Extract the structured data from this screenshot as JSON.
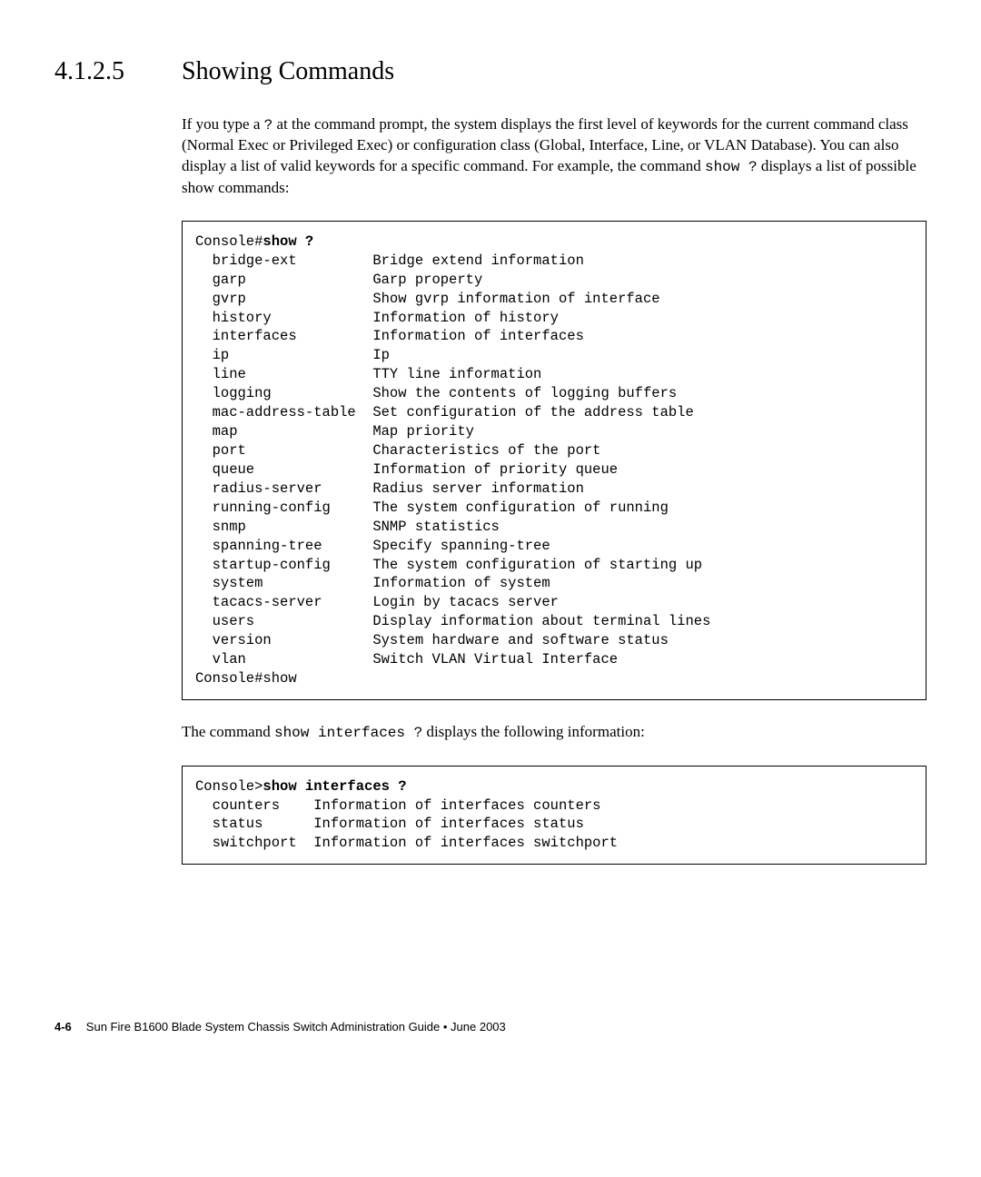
{
  "heading": {
    "number": "4.1.2.5",
    "title": "Showing Commands"
  },
  "para1_part1": "If you type a ",
  "para1_mono1": "?",
  "para1_part2": " at the command prompt, the system displays the first level of keywords for the current command class (Normal Exec or Privileged Exec) or configuration class (Global, Interface, Line, or VLAN Database). You can also display a list of valid keywords for a specific command. For example, the command ",
  "para1_mono2": "show ?",
  "para1_part3": " displays a list of possible show commands:",
  "code1": {
    "prompt": "Console#",
    "cmd": "show ?",
    "rows": [
      {
        "k": "bridge-ext",
        "d": "Bridge extend information"
      },
      {
        "k": "garp",
        "d": "Garp property"
      },
      {
        "k": "gvrp",
        "d": "Show gvrp information of interface"
      },
      {
        "k": "history",
        "d": "Information of history"
      },
      {
        "k": "interfaces",
        "d": "Information of interfaces"
      },
      {
        "k": "ip",
        "d": "Ip"
      },
      {
        "k": "line",
        "d": "TTY line information"
      },
      {
        "k": "logging",
        "d": "Show the contents of logging buffers"
      },
      {
        "k": "mac-address-table",
        "d": "Set configuration of the address table"
      },
      {
        "k": "map",
        "d": "Map priority"
      },
      {
        "k": "port",
        "d": "Characteristics of the port"
      },
      {
        "k": "queue",
        "d": "Information of priority queue"
      },
      {
        "k": "radius-server",
        "d": "Radius server information"
      },
      {
        "k": "running-config",
        "d": "The system configuration of running"
      },
      {
        "k": "snmp",
        "d": "SNMP statistics"
      },
      {
        "k": "spanning-tree",
        "d": "Specify spanning-tree"
      },
      {
        "k": "startup-config",
        "d": "The system configuration of starting up"
      },
      {
        "k": "system",
        "d": "Information of system"
      },
      {
        "k": "tacacs-server",
        "d": "Login by tacacs server"
      },
      {
        "k": "users",
        "d": "Display information about terminal lines"
      },
      {
        "k": "version",
        "d": "System hardware and software status"
      },
      {
        "k": "vlan",
        "d": "Switch VLAN Virtual Interface"
      }
    ],
    "trailer": "Console#show"
  },
  "para2_part1": "The command ",
  "para2_mono1": "show interfaces ?",
  "para2_part2": " displays the following information:",
  "code2": {
    "prompt": "Console>",
    "cmd": "show interfaces ?",
    "rows": [
      {
        "k": "counters",
        "d": "Information of interfaces counters"
      },
      {
        "k": "status",
        "d": "Information of interfaces status"
      },
      {
        "k": "switchport",
        "d": "Information of interfaces switchport"
      }
    ]
  },
  "footer": {
    "page": "4-6",
    "text": "Sun Fire B1600 Blade System Chassis Switch Administration Guide • June 2003"
  },
  "layout": {
    "code1_key_width": 18,
    "code2_key_width": 11
  }
}
